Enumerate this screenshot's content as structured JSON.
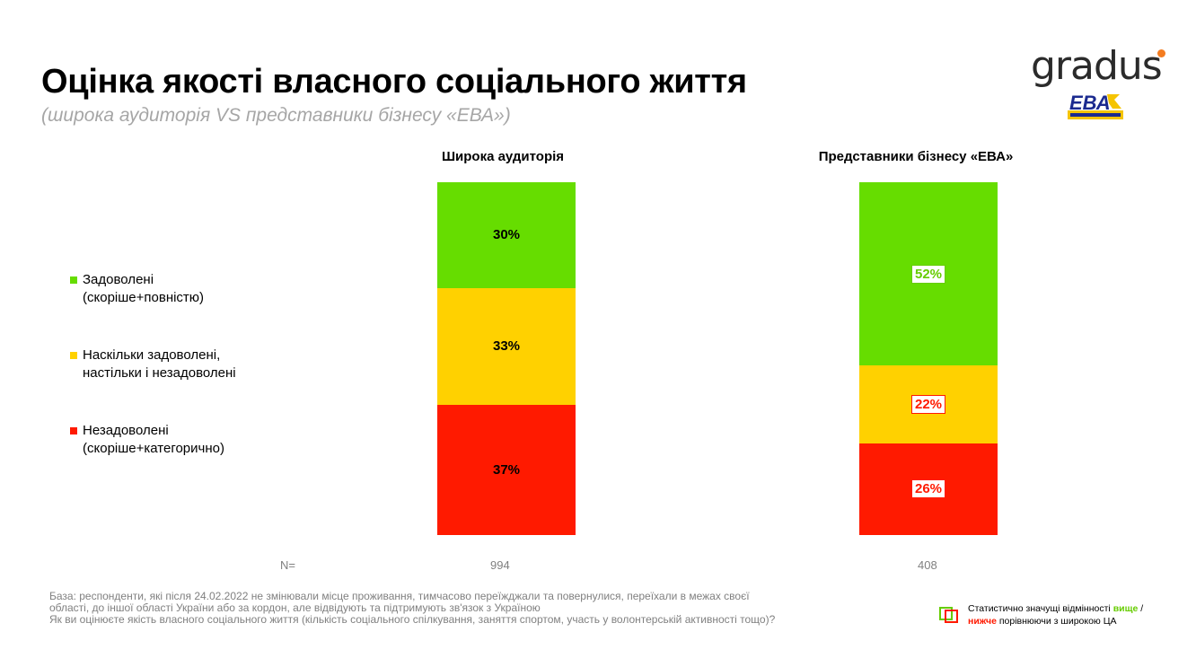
{
  "header": {
    "title": "Оцінка якості власного соціального життя",
    "subtitle": "(широка аудиторія VS представники бізнесу «ЕВА»)"
  },
  "logos": {
    "gradus": "gradus",
    "eba": "ЕВА"
  },
  "legend": [
    {
      "line1": "Задоволені",
      "line2": "(скоріше+повністю)",
      "color": "#66dd00"
    },
    {
      "line1": "Наскільки задоволені,",
      "line2": "настільки і незадоволені",
      "color": "#ffd100"
    },
    {
      "line1": "Незадоволені",
      "line2": "(скоріше+категорично)",
      "color": "#ff1a00"
    }
  ],
  "chart_data": {
    "type": "bar",
    "stacked": true,
    "percent": true,
    "categories": [
      "Широка аудиторія",
      "Представники бізнесу «ЕВА»"
    ],
    "series": [
      {
        "name": "Задоволені (скоріше+повністю)",
        "values": [
          30,
          52
        ],
        "color": "#66dd00"
      },
      {
        "name": "Наскільки задоволені, настільки і незадоволені",
        "values": [
          33,
          22
        ],
        "color": "#ffd100"
      },
      {
        "name": "Незадоволені (скоріше+категорично)",
        "values": [
          37,
          26
        ],
        "color": "#ff1a00"
      }
    ],
    "data_labels": [
      [
        "30%",
        "33%",
        "37%"
      ],
      [
        "52%",
        "22%",
        "26%"
      ]
    ],
    "significance": [
      [
        "none",
        "none",
        "none"
      ],
      [
        "higher",
        "lower",
        "lower"
      ]
    ],
    "n_label": "N=",
    "n_values": [
      "994",
      "408"
    ]
  },
  "footnote": {
    "line1": "База: респонденти, які після 24.02.2022 не змінювали місце проживання, тимчасово переїжджали та повернулися, переїхали в межах своєї",
    "line2": "області, до іншої області України або за кордон, але відвідують та підтримують зв'язок з Україною",
    "line3": "Як ви оцінюєте якість власного соціального життя (кількість соціального спілкування, заняття спортом, участь у волонтерській активності тощо)?"
  },
  "sig_legend": {
    "part1": "Статистично значущі відмінності ",
    "higher": "вище",
    "part2": " /",
    "lower": "нижче",
    "part3": " порівнюючи з широкою ЦА",
    "higher_color": "#66cc00",
    "lower_color": "#ff1a00"
  }
}
